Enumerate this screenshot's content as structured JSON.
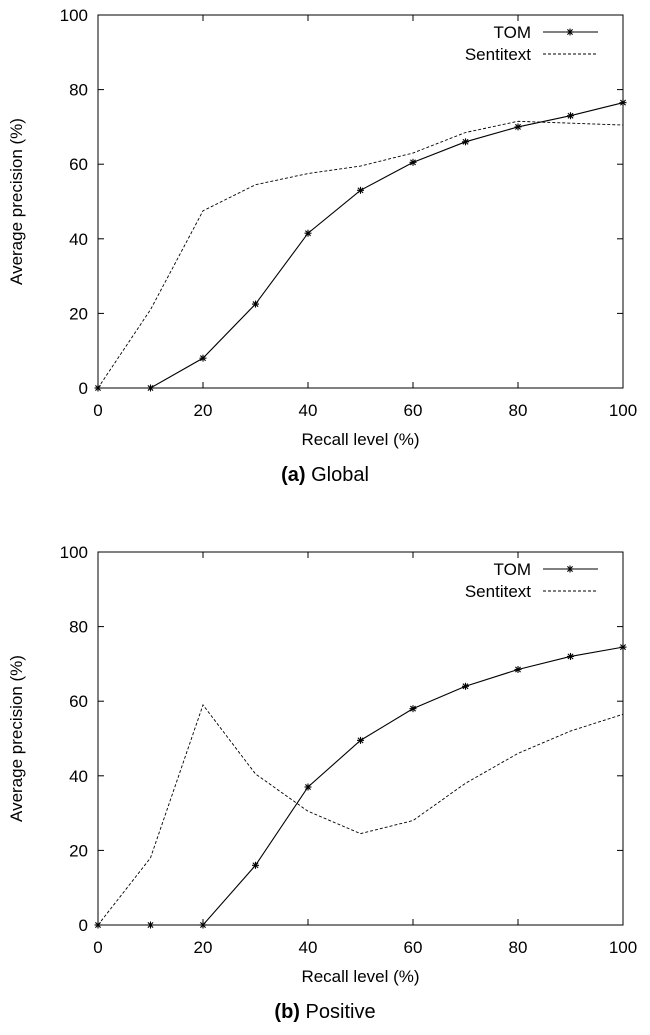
{
  "chart_data": [
    {
      "type": "line",
      "panel_label": "(a)",
      "panel_title": "Global",
      "xlabel": "Recall level (%)",
      "ylabel": "Average precision (%)",
      "xlim": [
        0,
        100
      ],
      "ylim": [
        0,
        100
      ],
      "xticks": [
        0,
        20,
        40,
        60,
        80,
        100
      ],
      "yticks": [
        0,
        20,
        40,
        60,
        80,
        100
      ],
      "legend_position": "top-right",
      "series": [
        {
          "name": "TOM",
          "style": "solid-star",
          "x": [
            0,
            10,
            20,
            30,
            40,
            50,
            60,
            70,
            80,
            90,
            100
          ],
          "y": [
            0,
            0,
            8,
            22.5,
            41.5,
            53,
            60.5,
            66,
            70,
            73,
            76.5
          ]
        },
        {
          "name": "Sentitext",
          "style": "dashed",
          "x": [
            0,
            10,
            20,
            30,
            40,
            50,
            60,
            70,
            80,
            90,
            100
          ],
          "y": [
            0,
            21,
            47.5,
            54.5,
            57.5,
            59.5,
            63,
            68.5,
            71.5,
            71,
            70.5
          ]
        }
      ]
    },
    {
      "type": "line",
      "panel_label": "(b)",
      "panel_title": "Positive",
      "xlabel": "Recall level (%)",
      "ylabel": "Average precision (%)",
      "xlim": [
        0,
        100
      ],
      "ylim": [
        0,
        100
      ],
      "xticks": [
        0,
        20,
        40,
        60,
        80,
        100
      ],
      "yticks": [
        0,
        20,
        40,
        60,
        80,
        100
      ],
      "legend_position": "top-right",
      "series": [
        {
          "name": "TOM",
          "style": "solid-star",
          "x": [
            0,
            10,
            20,
            30,
            40,
            50,
            60,
            70,
            80,
            90,
            100
          ],
          "y": [
            0,
            0,
            0,
            16,
            37,
            49.5,
            58,
            64,
            68.5,
            72,
            74.5
          ]
        },
        {
          "name": "Sentitext",
          "style": "dashed",
          "x": [
            0,
            10,
            20,
            30,
            40,
            50,
            60,
            70,
            80,
            90,
            100
          ],
          "y": [
            0,
            18,
            59,
            40.5,
            30.5,
            24.5,
            28,
            38,
            46,
            52,
            56.5
          ]
        }
      ]
    }
  ]
}
